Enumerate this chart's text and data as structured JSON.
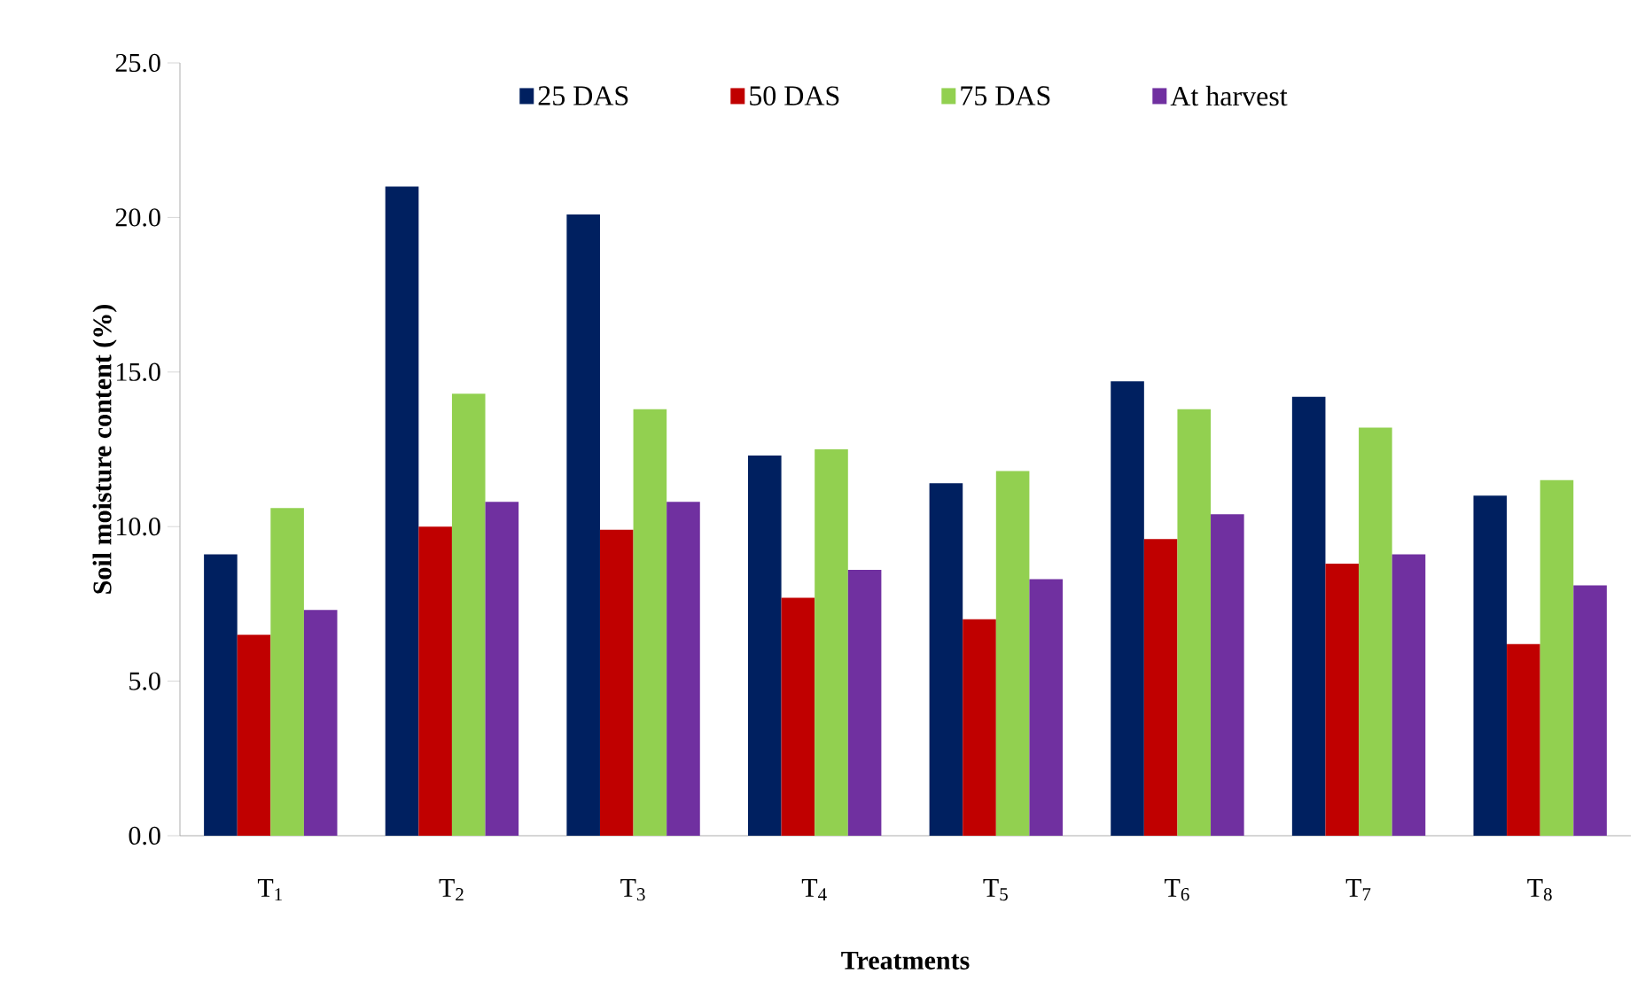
{
  "chart_data": {
    "type": "bar",
    "xlabel": "Treatments",
    "ylabel": "Soil moisture content (%)",
    "categories": [
      "T$_{1}$",
      "T$_{2}$",
      "T$_{3}$",
      "T$_{4}$",
      "T$_{5}$",
      "T$_{6}$",
      "T$_{7}$",
      "T$_{8}$"
    ],
    "series": [
      {
        "name": "25 DAS",
        "color": "#002060",
        "values": [
          9.1,
          21.0,
          20.1,
          12.3,
          11.4,
          14.7,
          14.2,
          11.0
        ]
      },
      {
        "name": "50 DAS",
        "color": "#c00000",
        "values": [
          6.5,
          10.0,
          9.9,
          7.7,
          7.0,
          9.6,
          8.8,
          6.2
        ]
      },
      {
        "name": "75 DAS",
        "color": "#92d050",
        "values": [
          10.6,
          14.3,
          13.8,
          12.5,
          11.8,
          13.8,
          13.2,
          11.5
        ]
      },
      {
        "name": "At harvest",
        "color": "#7030a0",
        "values": [
          7.3,
          10.8,
          10.8,
          8.6,
          8.3,
          10.4,
          9.1,
          8.1
        ]
      }
    ],
    "ylim": [
      0,
      25
    ],
    "yticks": [
      {
        "value": 0,
        "label": "0.0"
      },
      {
        "value": 5,
        "label": "5.0"
      },
      {
        "value": 10,
        "label": "10.0"
      },
      {
        "value": 15,
        "label": "15.0"
      },
      {
        "value": 20,
        "label": "20.0"
      },
      {
        "value": 25,
        "label": "25.0"
      }
    ],
    "legend": "top",
    "grid": false
  }
}
